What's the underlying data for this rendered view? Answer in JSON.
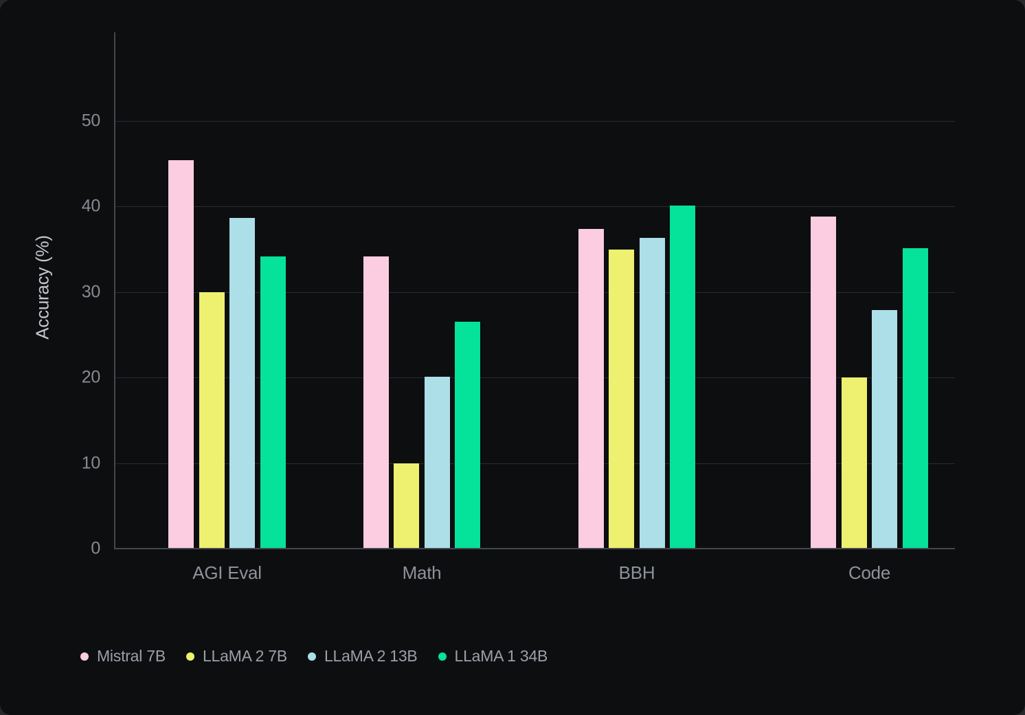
{
  "chart_data": {
    "type": "bar",
    "title": "",
    "ylabel": "Accuracy (%)",
    "xlabel": "",
    "ylim": [
      0,
      50
    ],
    "yticks": [
      0,
      10,
      20,
      30,
      40,
      50
    ],
    "grid": true,
    "legend_position": "bottom-left",
    "categories": [
      "AGI Eval",
      "Math",
      "BBH",
      "Code"
    ],
    "series": [
      {
        "name": "Mistral 7B",
        "color": "#fccde1",
        "values": [
          45.4,
          34.2,
          37.4,
          38.8
        ]
      },
      {
        "name": "LLaMA 2 7B",
        "color": "#eef06f",
        "values": [
          30.0,
          10.0,
          35.0,
          20.0
        ]
      },
      {
        "name": "LLaMA 2 13B",
        "color": "#addfe9",
        "values": [
          38.7,
          20.1,
          36.3,
          27.9
        ]
      },
      {
        "name": "LLaMA 1 34B",
        "color": "#05e29a",
        "values": [
          34.2,
          26.5,
          40.1,
          35.1
        ]
      }
    ]
  }
}
